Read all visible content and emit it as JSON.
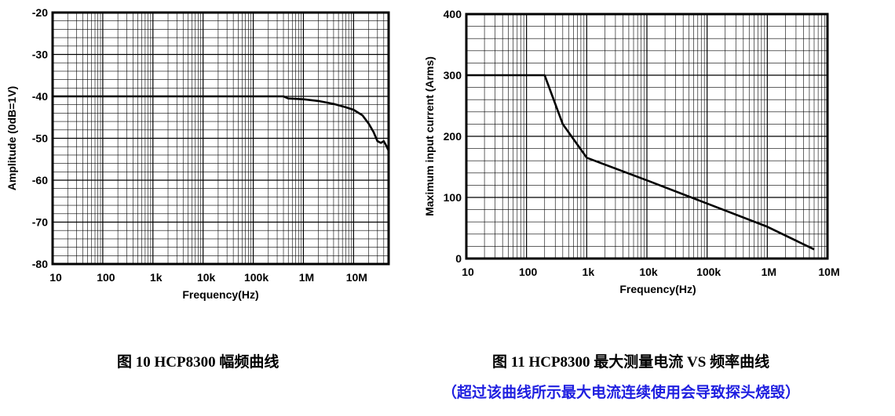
{
  "chart_data": [
    {
      "type": "line",
      "title": "",
      "xlabel": "Frequency(Hz)",
      "ylabel": "Amplitude (0dB=1V)",
      "x_scale": "log",
      "xlim": [
        10,
        50000000
      ],
      "ylim": [
        -80,
        -20
      ],
      "grid": true,
      "legend": "none",
      "x_ticks": [
        10,
        100,
        1000,
        10000,
        100000,
        1000000,
        10000000
      ],
      "x_tick_labels": [
        "10",
        "100",
        "1k",
        "10k",
        "100k",
        "1M",
        "10M"
      ],
      "y_ticks": [
        -20,
        -30,
        -40,
        -50,
        -60,
        -70,
        -80
      ],
      "y_tick_labels": [
        "-20",
        "-30",
        "-40",
        "-50",
        "-60",
        "-70",
        "-80"
      ],
      "color": "#000000",
      "series": [
        {
          "x": [
            10,
            100,
            1000,
            10000,
            100000,
            400000,
            500000,
            1000000,
            2000000,
            4000000,
            7000000,
            10000000,
            15000000,
            20000000,
            25000000,
            30000000,
            35000000,
            40000000,
            45000000,
            50000000
          ],
          "y": [
            -40,
            -40,
            -40,
            -40,
            -40,
            -40,
            -40.5,
            -40.7,
            -41.1,
            -41.8,
            -42.6,
            -43.2,
            -44.5,
            -46.5,
            -48.5,
            -50.7,
            -51.1,
            -50.7,
            -51.8,
            -53
          ]
        }
      ]
    },
    {
      "type": "line",
      "title": "",
      "xlabel": "Frequency(Hz)",
      "ylabel": "Maximum input current (Arms)",
      "x_scale": "log",
      "xlim": [
        10,
        10000000
      ],
      "ylim": [
        0,
        400
      ],
      "grid": true,
      "legend": "none",
      "x_ticks": [
        10,
        100,
        1000,
        10000,
        100000,
        1000000,
        10000000
      ],
      "x_tick_labels": [
        "10",
        "100",
        "1k",
        "10k",
        "100k",
        "1M",
        "10M"
      ],
      "y_ticks": [
        0,
        100,
        200,
        300,
        400
      ],
      "y_tick_labels": [
        "0",
        "100",
        "200",
        "300",
        "400"
      ],
      "color": "#000000",
      "series": [
        {
          "x": [
            10,
            100,
            200,
            400,
            1000,
            10000,
            100000,
            1000000,
            6000000
          ],
          "y": [
            300,
            300,
            300,
            220,
            165,
            128,
            90,
            52,
            15
          ]
        }
      ]
    }
  ],
  "captions": {
    "fig10": "图 10 HCP8300 幅频曲线",
    "fig11": "图 11 HCP8300 最大测量电流 VS 频率曲线",
    "warning": "（超过该曲线所示最大电流连续使用会导致探头烧毁）"
  }
}
